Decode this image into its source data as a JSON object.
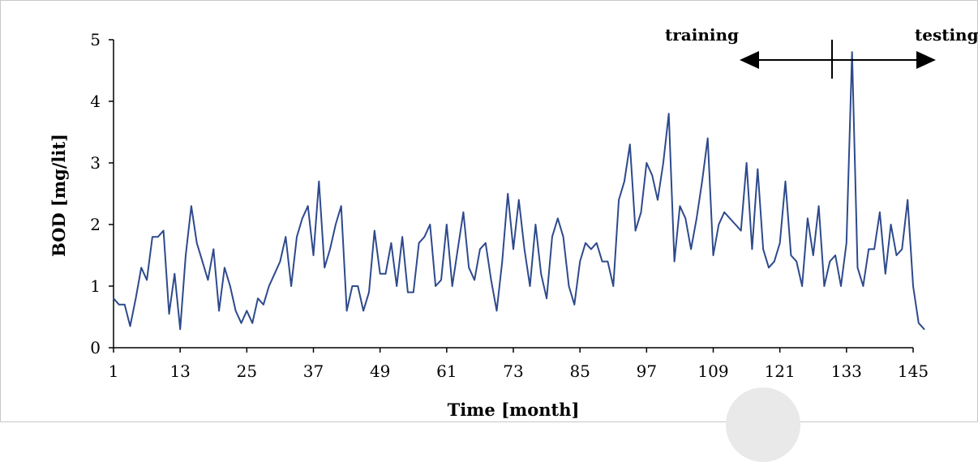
{
  "chart_data": {
    "type": "line",
    "xlabel": "Time [month]",
    "ylabel": "BOD [mg/lit]",
    "xlim": [
      1,
      145
    ],
    "ylim": [
      0,
      5
    ],
    "x_ticks": [
      1,
      13,
      25,
      37,
      49,
      61,
      73,
      85,
      97,
      109,
      121,
      133,
      145
    ],
    "y_ticks": [
      0,
      1,
      2,
      3,
      4,
      5
    ],
    "grid": false,
    "line_color": "#2e4a8c",
    "series": [
      {
        "x_start": 1,
        "values": [
          0.8,
          0.7,
          0.7,
          0.35,
          0.8,
          1.3,
          1.1,
          1.8,
          1.8,
          1.9,
          0.55,
          1.2,
          0.3,
          1.5,
          2.3,
          1.7,
          1.4,
          1.1,
          1.6,
          0.6,
          1.3,
          1.0,
          0.6,
          0.4,
          0.6,
          0.4,
          0.8,
          0.7,
          1.0,
          1.2,
          1.4,
          1.8,
          1.0,
          1.8,
          2.1,
          2.3,
          1.5,
          2.7,
          1.3,
          1.6,
          2.0,
          2.3,
          0.6,
          1.0,
          1.0,
          0.6,
          0.9,
          1.9,
          1.2,
          1.2,
          1.7,
          1.0,
          1.8,
          0.9,
          0.9,
          1.7,
          1.8,
          2.0,
          1.0,
          1.1,
          2.0,
          1.0,
          1.6,
          2.2,
          1.3,
          1.1,
          1.6,
          1.7,
          1.1,
          0.6,
          1.4,
          2.5,
          1.6,
          2.4,
          1.6,
          1.0,
          2.0,
          1.2,
          0.8,
          1.8,
          2.1,
          1.8,
          1.0,
          0.7,
          1.4,
          1.7,
          1.6,
          1.7,
          1.4,
          1.4,
          1.0,
          2.4,
          2.7,
          3.3,
          1.9,
          2.2,
          3.0,
          2.8,
          2.4,
          3.0,
          3.8,
          1.4,
          2.3,
          2.1,
          1.6,
          2.1,
          2.7,
          3.4,
          1.5,
          2.0,
          2.2,
          2.1,
          2.0,
          1.9,
          3.0,
          1.6,
          2.9,
          1.6,
          1.3,
          1.4,
          1.7,
          2.7,
          1.5,
          1.4,
          1.0,
          2.1,
          1.5,
          2.3,
          1.0,
          1.4,
          1.5,
          1.0,
          1.7,
          4.8,
          1.3,
          1.0,
          1.6,
          1.6,
          2.2,
          1.2,
          2.0,
          1.5,
          1.6,
          2.4,
          1.0,
          0.4,
          0.3
        ]
      }
    ],
    "annotations": [
      {
        "text": "training",
        "position": "above left arrow"
      },
      {
        "text": "testing",
        "position": "above right arrow"
      }
    ],
    "split_x": 130
  }
}
